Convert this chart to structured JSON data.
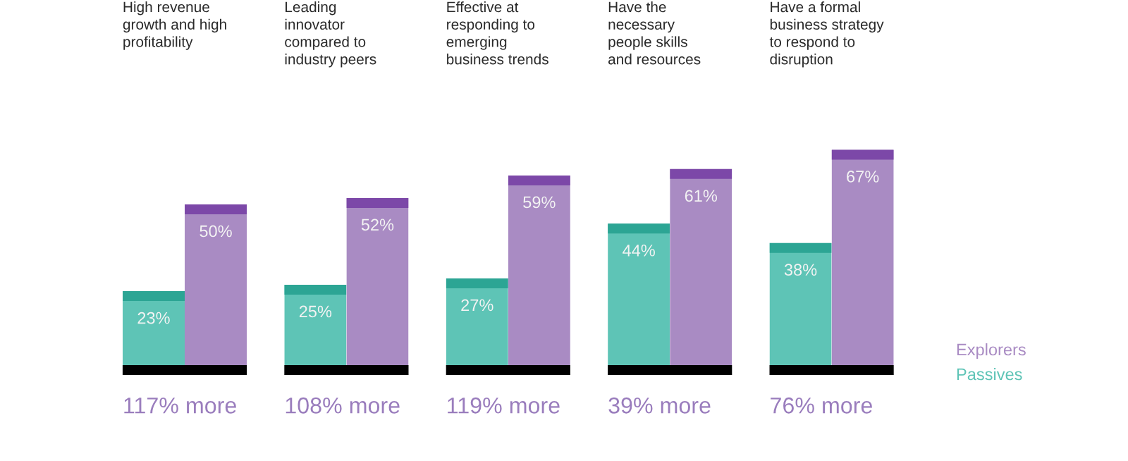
{
  "chart_data": {
    "type": "bar",
    "categories": [
      "High revenue\ngrowth and high\nprofitability",
      "Leading\ninnovator\ncompared to\nindustry peers",
      "Effective at\nresponding to\nemerging\nbusiness trends",
      "Have the\nnecessary\npeople skills\nand resources",
      "Have a formal\nbusiness strategy\nto respond to\ndisruption"
    ],
    "series": [
      {
        "name": "Passives",
        "color": "#5ec4b6",
        "values": [
          23,
          25,
          27,
          44,
          38
        ],
        "value_labels": [
          "23%",
          "25%",
          "27%",
          "44%",
          "38%"
        ]
      },
      {
        "name": "Explorers",
        "color": "#a98bc3",
        "values": [
          50,
          52,
          59,
          61,
          67
        ],
        "value_labels": [
          "50%",
          "52%",
          "59%",
          "61%",
          "67%"
        ]
      }
    ],
    "annotations": [
      "117% more",
      "108% more",
      "119% more",
      "39% more",
      "76% more"
    ],
    "legend": "bottom right",
    "tick_labels": "x"
  }
}
